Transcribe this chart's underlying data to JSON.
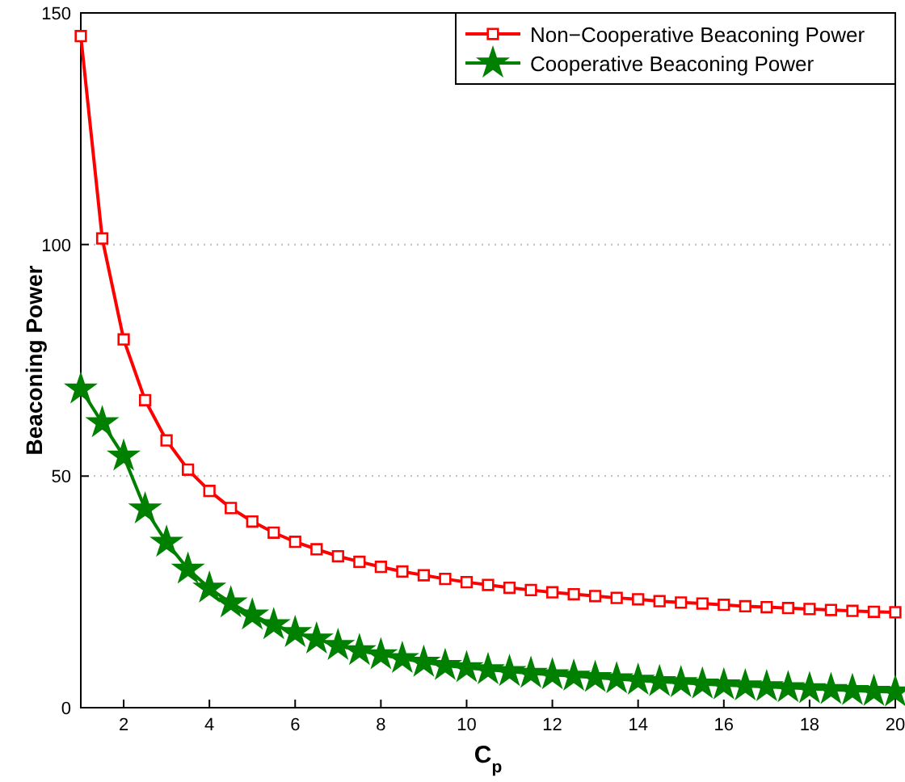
{
  "chart_data": {
    "type": "line",
    "xlabel": "C$_{p}$",
    "ylabel": "Beaconing Power",
    "x": [
      1,
      1.5,
      2,
      2.5,
      3,
      3.5,
      4,
      4.5,
      5,
      5.5,
      6,
      6.5,
      7,
      7.5,
      8,
      8.5,
      9,
      9.5,
      10,
      10.5,
      11,
      11.5,
      12,
      12.5,
      13,
      13.5,
      14,
      14.5,
      15,
      15.5,
      16,
      16.5,
      17,
      17.5,
      18,
      18.5,
      19,
      19.5,
      20
    ],
    "series": [
      {
        "name": "Non−Cooperative Beaconing Power",
        "color": "#ff0000",
        "marker": "square",
        "values": [
          145,
          101.3,
          79.5,
          66.4,
          57.7,
          51.4,
          46.8,
          43.1,
          40.2,
          37.8,
          35.8,
          34.2,
          32.7,
          31.5,
          30.4,
          29.4,
          28.6,
          27.8,
          27.1,
          26.5,
          25.9,
          25.4,
          24.9,
          24.5,
          24.1,
          23.7,
          23.4,
          23.0,
          22.7,
          22.5,
          22.2,
          21.9,
          21.7,
          21.5,
          21.3,
          21.1,
          20.9,
          20.7,
          20.6
        ]
      },
      {
        "name": "Cooperative Beaconing Power",
        "color": "#008000",
        "marker": "star",
        "values": [
          68.8,
          61.5,
          54.3,
          42.9,
          35.7,
          29.9,
          25.8,
          22.6,
          20.0,
          17.9,
          16.2,
          14.8,
          13.4,
          12.3,
          11.4,
          10.6,
          9.8,
          9.1,
          8.6,
          8.2,
          7.8,
          7.4,
          7.1,
          6.8,
          6.5,
          6.2,
          5.9,
          5.6,
          5.4,
          5.1,
          4.9,
          4.7,
          4.5,
          4.3,
          4.1,
          3.9,
          3.7,
          3.5,
          3.4
        ]
      }
    ],
    "xlim": [
      1,
      20
    ],
    "xticks": [
      2,
      4,
      6,
      8,
      10,
      12,
      14,
      16,
      18,
      20
    ],
    "ylim": [
      0,
      150
    ],
    "yticks": [
      0,
      50,
      100,
      150
    ],
    "grid": "y",
    "legend": "top right",
    "line_style": "solid"
  }
}
